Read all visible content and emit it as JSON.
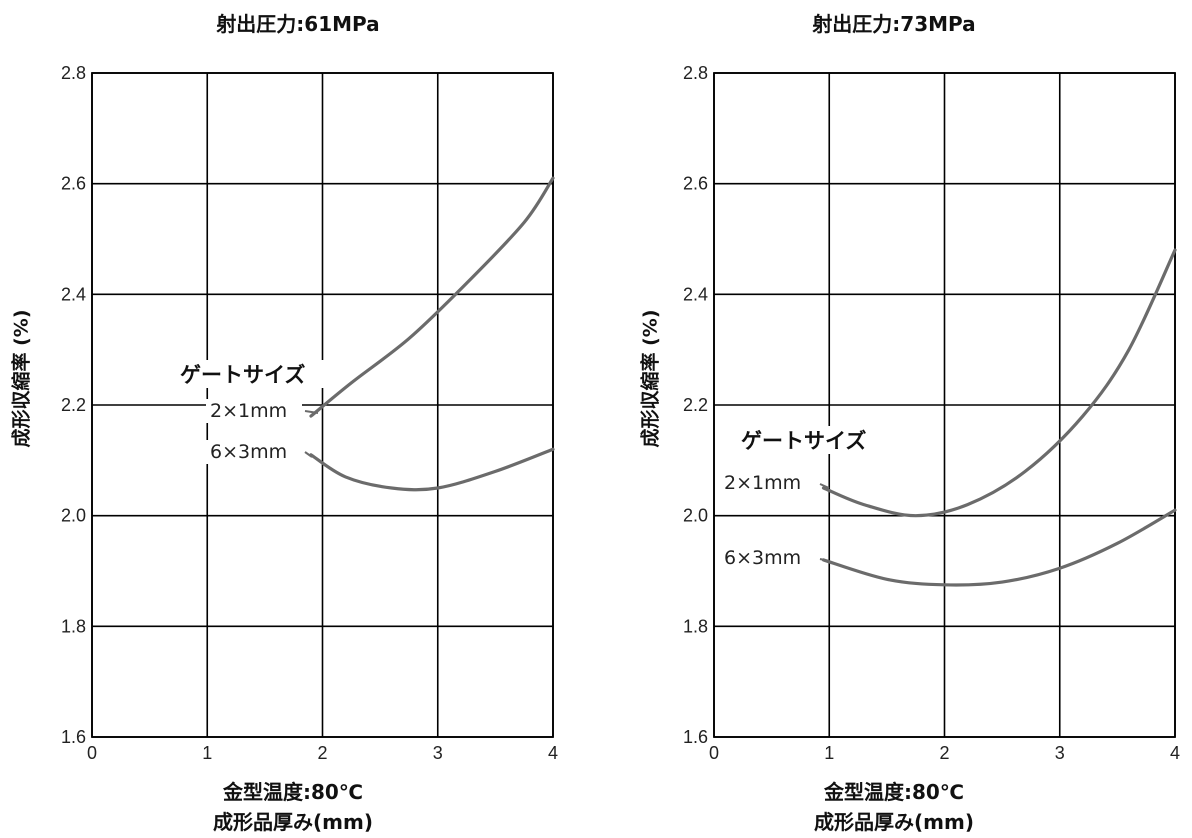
{
  "chart_data": [
    {
      "type": "line",
      "title": "射出圧力:61MPa",
      "note": "金型温度:80℃",
      "xlabel": "成形品厚み(mm)",
      "ylabel": "成形収縮率 (%)",
      "xlim": [
        0,
        4
      ],
      "ylim": [
        1.6,
        2.8
      ],
      "xticks": [
        "0",
        "1",
        "2",
        "3",
        "4"
      ],
      "yticks": [
        "1.6",
        "1.8",
        "2.0",
        "2.2",
        "2.4",
        "2.6",
        "2.8"
      ],
      "grid": true,
      "legend_title": "ゲートサイズ",
      "series": [
        {
          "name": "2×1mm",
          "x": [
            1.9,
            2.25,
            2.75,
            3.25,
            3.75,
            4.0
          ],
          "y": [
            2.18,
            2.24,
            2.32,
            2.42,
            2.53,
            2.61
          ],
          "color": "#6b6b6b"
        },
        {
          "name": "6×3mm",
          "x": [
            1.9,
            2.2,
            2.6,
            3.0,
            3.5,
            4.0
          ],
          "y": [
            2.11,
            2.07,
            2.05,
            2.05,
            2.08,
            2.12
          ],
          "color": "#6b6b6b"
        }
      ]
    },
    {
      "type": "line",
      "title": "射出圧力:73MPa",
      "note": "金型温度:80℃",
      "xlabel": "成形品厚み(mm)",
      "ylabel": "成形収縮率 (%)",
      "xlim": [
        0,
        4
      ],
      "ylim": [
        1.6,
        2.8
      ],
      "xticks": [
        "0",
        "1",
        "2",
        "3",
        "4"
      ],
      "yticks": [
        "1.6",
        "1.8",
        "2.0",
        "2.2",
        "2.4",
        "2.6",
        "2.8"
      ],
      "grid": true,
      "legend_title": "ゲートサイズ",
      "series": [
        {
          "name": "2×1mm",
          "x": [
            0.95,
            1.3,
            1.75,
            2.2,
            2.7,
            3.2,
            3.6,
            4.0
          ],
          "y": [
            2.05,
            2.02,
            2.0,
            2.02,
            2.08,
            2.18,
            2.3,
            2.48
          ],
          "color": "#6b6b6b"
        },
        {
          "name": "6×3mm",
          "x": [
            0.95,
            1.5,
            2.0,
            2.5,
            3.0,
            3.5,
            4.0
          ],
          "y": [
            1.92,
            1.885,
            1.875,
            1.88,
            1.905,
            1.95,
            2.01
          ],
          "color": "#6b6b6b"
        }
      ]
    }
  ]
}
